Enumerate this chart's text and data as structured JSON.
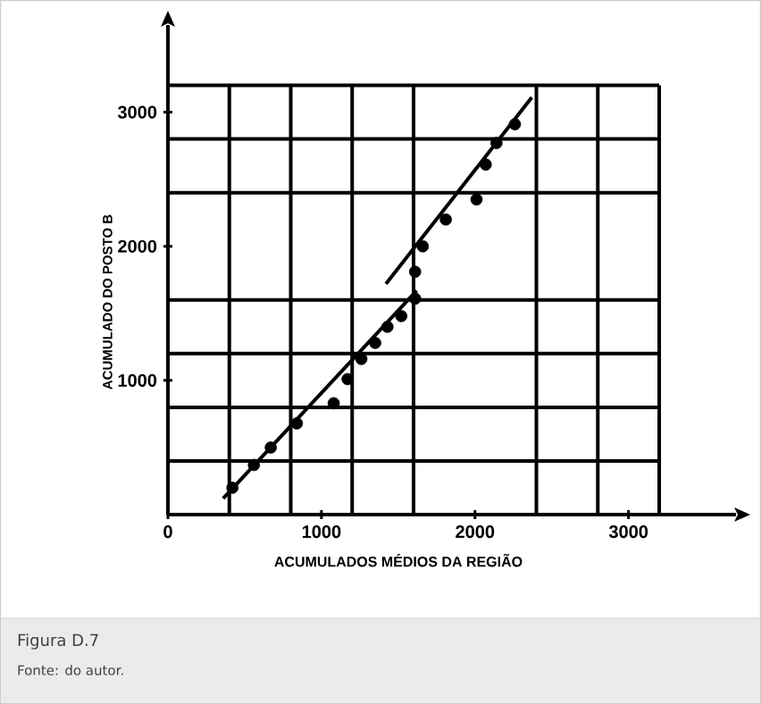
{
  "chart_data": {
    "type": "scatter",
    "xlabel": "ACUMULADOS MÉDIOS DA REGIÃO",
    "ylabel": "ACUMULADO DO POSTO B",
    "annotations": [
      "Figura D.7",
      "Fonte: do autor."
    ],
    "xlim": [
      0,
      3700
    ],
    "ylim": [
      0,
      3650
    ],
    "xticks": [
      0,
      {
        "value": 400,
        "label": null
      },
      {
        "value": 800,
        "label": null
      },
      1000,
      {
        "value": 1200,
        "label": null
      },
      {
        "value": 1600,
        "label": null
      },
      2000,
      {
        "value": 2400,
        "label": null
      },
      {
        "value": 2800,
        "label": null
      },
      3000,
      {
        "value": 3200,
        "label": null
      }
    ],
    "yticks": [
      {
        "value": 400,
        "label": null
      },
      {
        "value": 800,
        "label": null
      },
      1000,
      {
        "value": 1200,
        "label": null
      },
      {
        "value": 1600,
        "label": null
      },
      2000,
      {
        "value": 2400,
        "label": null
      },
      {
        "value": 2800,
        "label": null
      },
      3000,
      {
        "value": 3200,
        "label": null
      }
    ],
    "grid": true,
    "series": [
      {
        "marker": "circle",
        "color": "#000000",
        "x": [
          420,
          560,
          670,
          840,
          1080,
          1170,
          1260,
          1350,
          1430,
          1520,
          1610,
          1610,
          1660,
          1810,
          2010,
          2070,
          2140,
          2260
        ],
        "values": [
          200,
          370,
          500,
          680,
          830,
          1010,
          1160,
          1280,
          1400,
          1480,
          1610,
          1810,
          2000,
          2200,
          2350,
          2610,
          2770,
          2910
        ]
      },
      {
        "type": "line",
        "color": "#000000",
        "marker": "none",
        "x": [
          360,
          1620
        ],
        "values": [
          120,
          1670
        ]
      },
      {
        "type": "line",
        "color": "#000000",
        "marker": "none",
        "x": [
          1420,
          2370
        ],
        "values": [
          1720,
          3110
        ]
      }
    ]
  }
}
